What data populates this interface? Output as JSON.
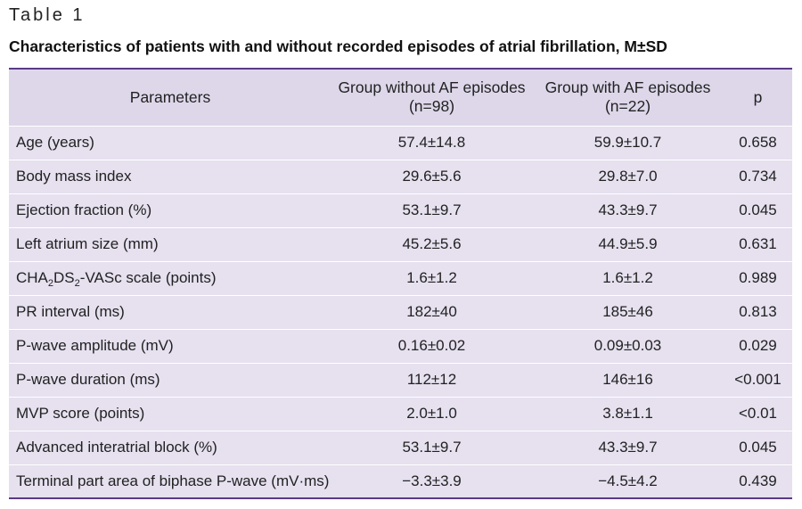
{
  "table_label": "Table 1",
  "caption": "Characteristics of patients with and without recorded episodes of atrial fibrillation, M±SD",
  "headers": {
    "parameters": "Parameters",
    "group_without_line1": "Group without AF episodes",
    "group_without_line2": "(n=98)",
    "group_with_line1": "Group with AF episodes",
    "group_with_line2": "(n=22)",
    "p": "p"
  },
  "rows": [
    {
      "param": "Age (years)",
      "without": "57.4±14.8",
      "with": "59.9±10.7",
      "p": "0.658"
    },
    {
      "param": "Body mass index",
      "without": "29.6±5.6",
      "with": "29.8±7.0",
      "p": "0.734"
    },
    {
      "param": "Ejection fraction (%)",
      "without": "53.1±9.7",
      "with": "43.3±9.7",
      "p": "0.045"
    },
    {
      "param": "Left atrium size (mm)",
      "without": "45.2±5.6",
      "with": "44.9±5.9",
      "p": "0.631"
    },
    {
      "param_a": "CHA",
      "param_sub1": "2",
      "param_b": "DS",
      "param_sub2": "2",
      "param_c": "-VASc scale (points)",
      "without": "1.6±1.2",
      "with": "1.6±1.2",
      "p": "0.989"
    },
    {
      "param": "PR interval (ms)",
      "without": "182±40",
      "with": "185±46",
      "p": "0.813"
    },
    {
      "param": "P-wave amplitude (mV)",
      "without": "0.16±0.02",
      "with": "0.09±0.03",
      "p": "0.029"
    },
    {
      "param": "P-wave duration (ms)",
      "without": "112±12",
      "with": "146±16",
      "p": "<0.001"
    },
    {
      "param": "MVP score (points)",
      "without": "2.0±1.0",
      "with": "3.8±1.1",
      "p": "<0.01"
    },
    {
      "param": "Advanced interatrial block (%)",
      "without": "53.1±9.7",
      "with": "43.3±9.7",
      "p": "0.045"
    },
    {
      "param": "Terminal part area of biphase P-wave (mV·ms)",
      "without": "−3.3±3.9",
      "with": "−4.5±4.2",
      "p": "0.439"
    }
  ]
}
